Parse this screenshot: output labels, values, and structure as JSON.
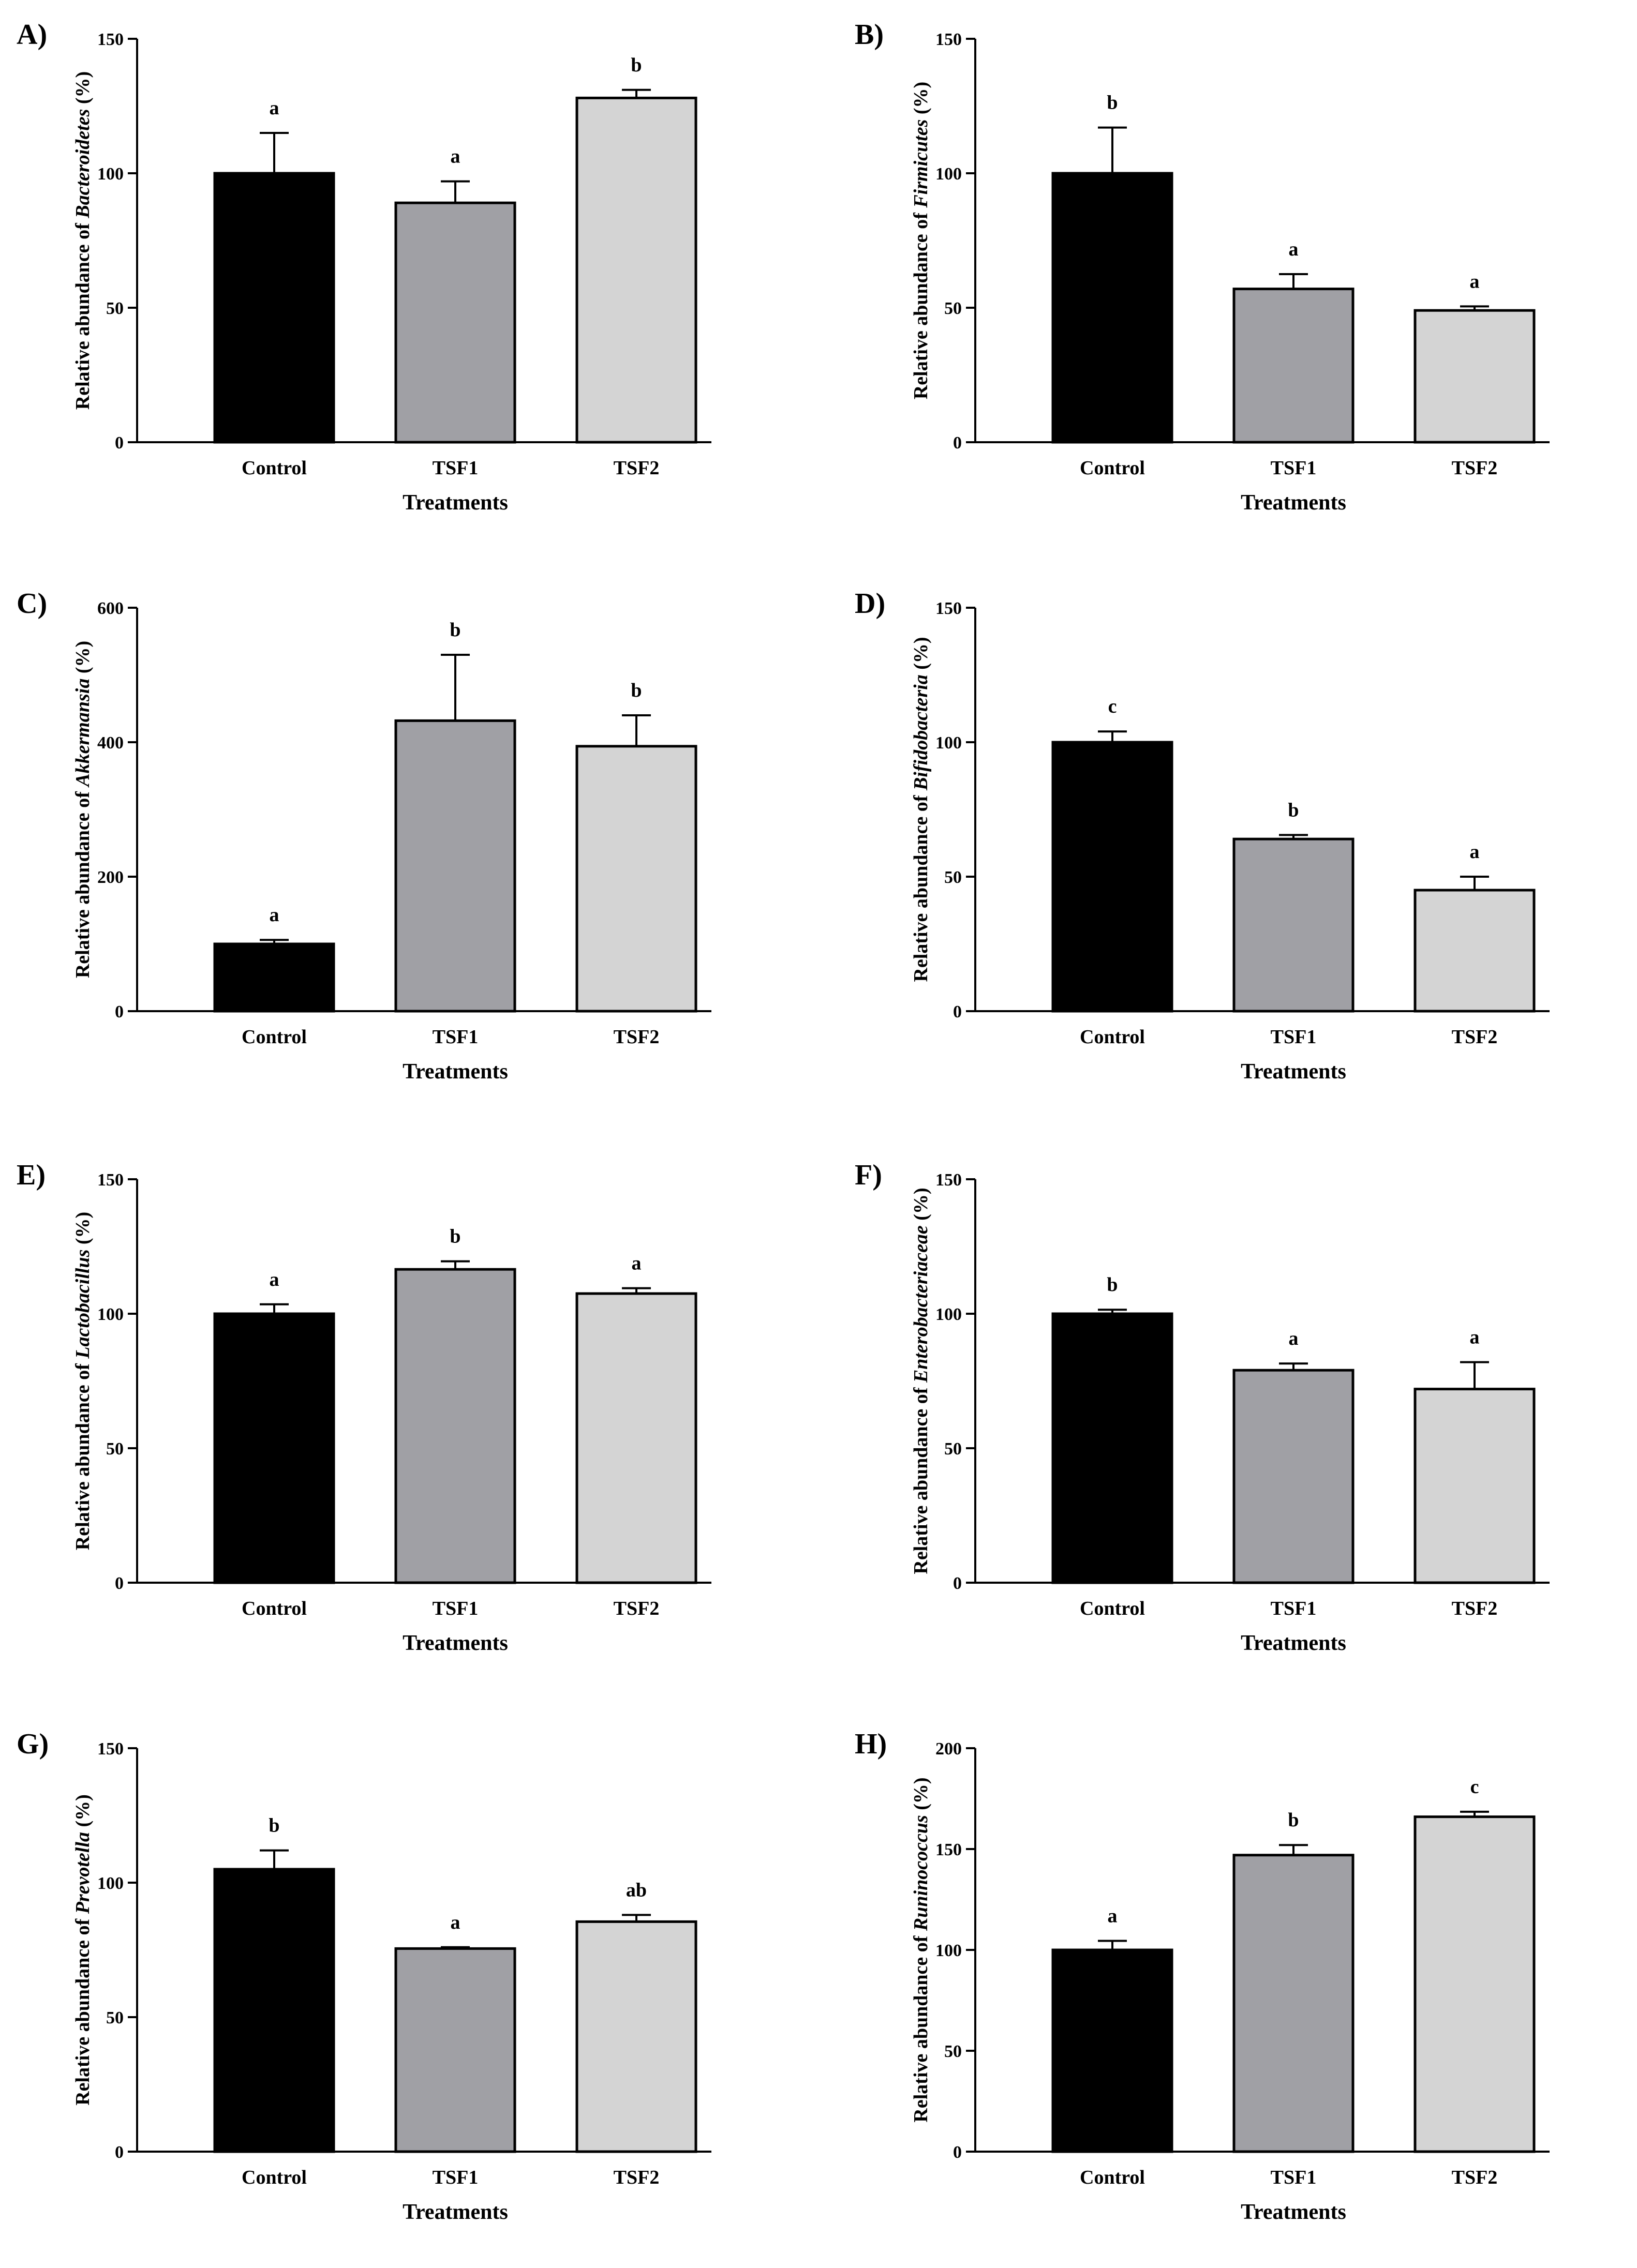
{
  "chart_data": [
    {
      "panel": "A)",
      "type": "bar",
      "ylabel_prefix": "Relative abundance of ",
      "ylabel_taxon": "Bacteroidetes",
      "ylabel_suffix": " (%)",
      "xlabel": "Treatments",
      "categories": [
        "Control",
        "TSF1",
        "TSF2"
      ],
      "values": [
        100,
        89,
        128
      ],
      "errors": [
        15,
        8,
        3
      ],
      "significance": [
        "a",
        "a",
        "b"
      ],
      "ylim": [
        0,
        150
      ],
      "yticks": [
        0,
        50,
        100,
        150
      ]
    },
    {
      "panel": "B)",
      "type": "bar",
      "ylabel_prefix": "Relative abundance of ",
      "ylabel_taxon": "Firmicutes",
      "ylabel_suffix": " (%)",
      "xlabel": "Treatments",
      "categories": [
        "Control",
        "TSF1",
        "TSF2"
      ],
      "values": [
        100,
        57,
        49
      ],
      "errors": [
        17,
        5.5,
        1.5
      ],
      "significance": [
        "b",
        "a",
        "a"
      ],
      "ylim": [
        0,
        150
      ],
      "yticks": [
        0,
        50,
        100,
        150
      ]
    },
    {
      "panel": "C)",
      "type": "bar",
      "ylabel_prefix": "Relative abundance of ",
      "ylabel_taxon": "Akkermansia",
      "ylabel_suffix": " (%)",
      "xlabel": "Treatments",
      "categories": [
        "Control",
        "TSF1",
        "TSF2"
      ],
      "values": [
        100,
        432,
        394
      ],
      "errors": [
        6,
        98,
        46
      ],
      "significance": [
        "a",
        "b",
        "b"
      ],
      "ylim": [
        0,
        600
      ],
      "yticks": [
        0,
        200,
        400,
        600
      ]
    },
    {
      "panel": "D)",
      "type": "bar",
      "ylabel_prefix": "Relative abundance of ",
      "ylabel_taxon": "Bifidobacteria",
      "ylabel_suffix": " (%)",
      "xlabel": "Treatments",
      "categories": [
        "Control",
        "TSF1",
        "TSF2"
      ],
      "values": [
        100,
        64,
        45
      ],
      "errors": [
        4,
        1.5,
        5
      ],
      "significance": [
        "c",
        "b",
        "a"
      ],
      "ylim": [
        0,
        150
      ],
      "yticks": [
        0,
        50,
        100,
        150
      ]
    },
    {
      "panel": "E)",
      "type": "bar",
      "ylabel_prefix": "Relative abundance of ",
      "ylabel_taxon": "Lactobacillus",
      "ylabel_suffix": " (%)",
      "xlabel": "Treatments",
      "categories": [
        "Control",
        "TSF1",
        "TSF2"
      ],
      "values": [
        100,
        116.5,
        107.5
      ],
      "errors": [
        3.5,
        3,
        2
      ],
      "significance": [
        "a",
        "b",
        "a"
      ],
      "ylim": [
        0,
        150
      ],
      "yticks": [
        0,
        50,
        100,
        150
      ]
    },
    {
      "panel": "F)",
      "type": "bar",
      "ylabel_prefix": "Relative abundance of ",
      "ylabel_taxon": "Enterobacteriaceae",
      "ylabel_suffix": " (%)",
      "xlabel": "Treatments",
      "categories": [
        "Control",
        "TSF1",
        "TSF2"
      ],
      "values": [
        100,
        79,
        72
      ],
      "errors": [
        1.5,
        2.5,
        10
      ],
      "significance": [
        "b",
        "a",
        "a"
      ],
      "ylim": [
        0,
        150
      ],
      "yticks": [
        0,
        50,
        100,
        150
      ]
    },
    {
      "panel": "G)",
      "type": "bar",
      "ylabel_prefix": "Relative abundance of ",
      "ylabel_taxon": "Prevotella",
      "ylabel_suffix": " (%)",
      "xlabel": "Treatments",
      "categories": [
        "Control",
        "TSF1",
        "TSF2"
      ],
      "values": [
        105,
        75.5,
        85.5
      ],
      "errors": [
        7,
        0.5,
        2.5
      ],
      "significance": [
        "b",
        "a",
        "ab"
      ],
      "ylim": [
        0,
        150
      ],
      "yticks": [
        0,
        50,
        100,
        150
      ]
    },
    {
      "panel": "H)",
      "type": "bar",
      "ylabel_prefix": "Relative abundance of ",
      "ylabel_taxon": "Runinococcus",
      "ylabel_suffix": " (%)",
      "xlabel": "Treatments",
      "categories": [
        "Control",
        "TSF1",
        "TSF2"
      ],
      "values": [
        100,
        147,
        166
      ],
      "errors": [
        4.5,
        5,
        2.5
      ],
      "significance": [
        "a",
        "b",
        "c"
      ],
      "ylim": [
        0,
        200
      ],
      "yticks": [
        0,
        50,
        100,
        150,
        200
      ]
    }
  ],
  "colors": {
    "bars": [
      "#000000",
      "#a0a0a5",
      "#d4d4d4"
    ],
    "axis": "#000000"
  }
}
